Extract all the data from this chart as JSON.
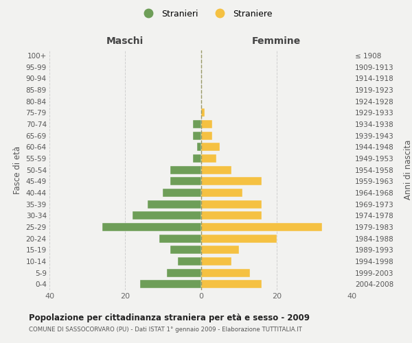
{
  "age_groups": [
    "0-4",
    "5-9",
    "10-14",
    "15-19",
    "20-24",
    "25-29",
    "30-34",
    "35-39",
    "40-44",
    "45-49",
    "50-54",
    "55-59",
    "60-64",
    "65-69",
    "70-74",
    "75-79",
    "80-84",
    "85-89",
    "90-94",
    "95-99",
    "100+"
  ],
  "birth_years": [
    "2004-2008",
    "1999-2003",
    "1994-1998",
    "1989-1993",
    "1984-1988",
    "1979-1983",
    "1974-1978",
    "1969-1973",
    "1964-1968",
    "1959-1963",
    "1954-1958",
    "1949-1953",
    "1944-1948",
    "1939-1943",
    "1934-1938",
    "1929-1933",
    "1924-1928",
    "1919-1923",
    "1914-1918",
    "1909-1913",
    "≤ 1908"
  ],
  "males": [
    16,
    9,
    6,
    8,
    11,
    26,
    18,
    14,
    10,
    8,
    8,
    2,
    1,
    2,
    2,
    0,
    0,
    0,
    0,
    0,
    0
  ],
  "females": [
    16,
    13,
    8,
    10,
    20,
    32,
    16,
    16,
    11,
    16,
    8,
    4,
    5,
    3,
    3,
    1,
    0,
    0,
    0,
    0,
    0
  ],
  "male_color": "#6e9e58",
  "female_color": "#f5c142",
  "background_color": "#f2f2f0",
  "grid_color": "#cccccc",
  "title": "Popolazione per cittadinanza straniera per età e sesso - 2009",
  "subtitle": "COMUNE DI SASSOCORVARO (PU) - Dati ISTAT 1° gennaio 2009 - Elaborazione TUTTITALIA.IT",
  "xlabel_left": "Maschi",
  "xlabel_right": "Femmine",
  "ylabel_left": "Fasce di età",
  "ylabel_right": "Anni di nascita",
  "legend_male": "Stranieri",
  "legend_female": "Straniere",
  "xlim": 40,
  "xticks": [
    -40,
    -20,
    0,
    20,
    40
  ],
  "xticklabels": [
    "40",
    "20",
    "0",
    "20",
    "40"
  ]
}
